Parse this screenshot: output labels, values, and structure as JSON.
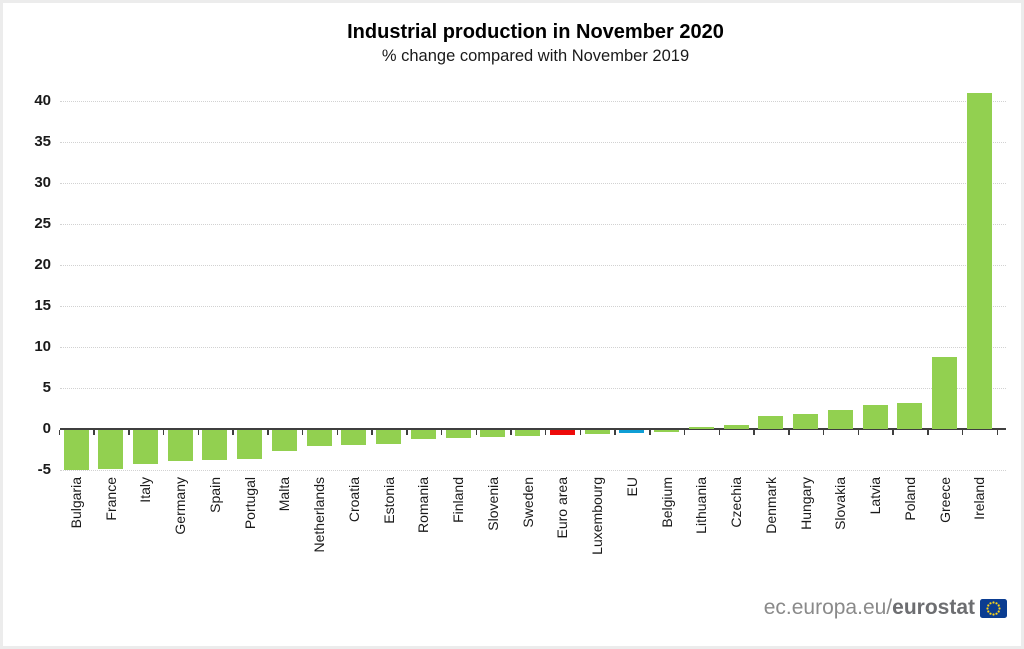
{
  "header": {
    "title": "Industrial production in November 2020",
    "subtitle": "% change compared with November 2019"
  },
  "footer": {
    "url_prefix": "ec.europa.eu/",
    "url_bold": "eurostat",
    "flag_icon": "eu-flag-icon"
  },
  "chart_data": {
    "type": "bar",
    "title": "Industrial production in November 2020",
    "subtitle": "% change compared with November 2019",
    "categories": [
      "Bulgaria",
      "France",
      "Italy",
      "Germany",
      "Spain",
      "Portugal",
      "Malta",
      "Netherlands",
      "Croatia",
      "Estonia",
      "Romania",
      "Finland",
      "Slovenia",
      "Sweden",
      "Euro area",
      "Luxembourg",
      "EU",
      "Belgium",
      "Lithuania",
      "Czechia",
      "Denmark",
      "Hungary",
      "Slovakia",
      "Latvia",
      "Poland",
      "Greece",
      "Ireland"
    ],
    "values": [
      -4.9,
      -4.8,
      -4.2,
      -3.8,
      -3.7,
      -3.5,
      -2.6,
      -1.9,
      -1.8,
      -1.7,
      -1.1,
      -1.0,
      -0.8,
      -0.7,
      -0.6,
      -0.5,
      -0.4,
      -0.3,
      0.2,
      0.5,
      1.6,
      1.8,
      2.3,
      2.9,
      3.2,
      8.8,
      41.0
    ],
    "highlight_colors": {
      "Euro area": "#ee0a0a",
      "EU": "#0f9ed5"
    },
    "bar_color_default": "#92d050",
    "yticks": [
      40,
      35,
      30,
      25,
      20,
      15,
      10,
      5,
      0,
      -5
    ],
    "ylim": [
      -5,
      42
    ],
    "grid": "dotted horizontal",
    "legend": "none",
    "xlabel": "",
    "ylabel": ""
  }
}
